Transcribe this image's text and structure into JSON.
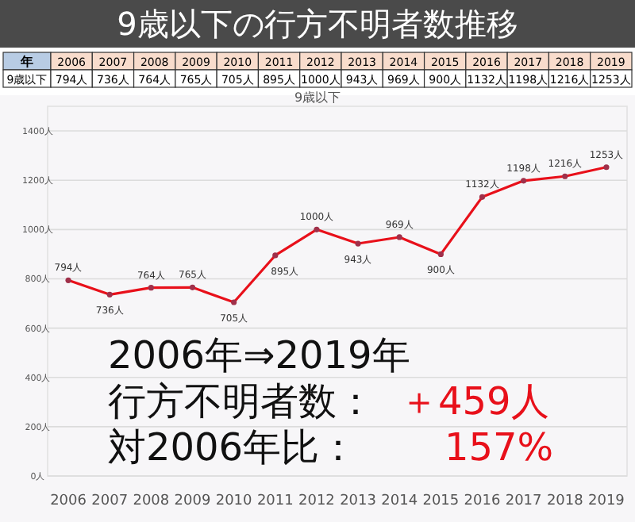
{
  "chart_data": {
    "type": "line",
    "title": "9歳以下の行方不明者数推移",
    "subtitle": "9歳以下",
    "categories": [
      "2006",
      "2007",
      "2008",
      "2009",
      "2010",
      "2011",
      "2012",
      "2013",
      "2014",
      "2015",
      "2016",
      "2017",
      "2018",
      "2019"
    ],
    "series": [
      {
        "color": "#e8101a",
        "values": [
          794,
          736,
          764,
          765,
          705,
          895,
          1000,
          943,
          969,
          900,
          1132,
          1198,
          1216,
          1253
        ],
        "value_labels": [
          "794人",
          "736人",
          "764人",
          "765人",
          "705人",
          "895人",
          "1000人",
          "943人",
          "969人",
          "900人",
          "1132人",
          "1198人",
          "1216人",
          "1253人"
        ]
      }
    ],
    "ylim": [
      0,
      1500
    ],
    "yticks": [
      {
        "value": 0,
        "label": "0人"
      },
      {
        "value": 200,
        "label": "200人"
      },
      {
        "value": 400,
        "label": "400人"
      },
      {
        "value": 600,
        "label": "600人"
      },
      {
        "value": 800,
        "label": "800人"
      },
      {
        "value": 1000,
        "label": "1000人"
      },
      {
        "value": 1200,
        "label": "1200人"
      },
      {
        "value": 1400,
        "label": "1400人"
      }
    ],
    "grid": "y",
    "marker": "circle",
    "line_style": "solid",
    "annotations": [
      "年",
      "9歳以下",
      "2006年⇒2019年",
      "行方不明者数：",
      "＋459人",
      "対2006年比：",
      "157%"
    ]
  }
}
